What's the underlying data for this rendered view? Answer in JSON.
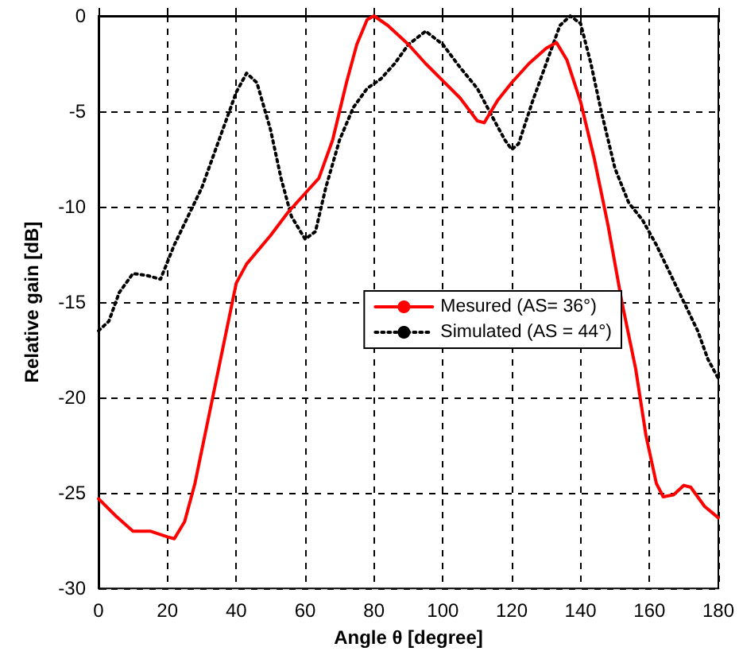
{
  "chart_data": {
    "type": "line",
    "xlabel": "Angle θ [degree]",
    "ylabel": "Relative gain [dB]",
    "xlim": [
      0,
      180
    ],
    "xticks": [
      0,
      20,
      40,
      60,
      80,
      100,
      120,
      140,
      160,
      180
    ],
    "ylim": [
      -30,
      0
    ],
    "yticks": [
      -30,
      -25,
      -20,
      -15,
      -10,
      -5,
      0
    ],
    "grid": true,
    "legend": "right",
    "marker": "none",
    "series": [
      {
        "name": "Mesured (AS= 36°)",
        "color": "#ff0000",
        "line_style": "solid",
        "x": [
          0,
          5,
          10,
          15,
          20,
          22,
          25,
          28,
          32,
          36,
          40,
          43,
          50,
          55,
          60,
          64,
          68,
          72,
          75,
          78,
          80,
          84,
          90,
          95,
          100,
          105,
          110,
          112,
          116,
          120,
          125,
          130,
          133,
          136,
          140,
          144,
          148,
          152,
          156,
          159,
          162,
          164,
          167,
          170,
          172,
          176,
          180
        ],
        "values": [
          -25.3,
          -26.2,
          -27,
          -27,
          -27.3,
          -27.4,
          -26.5,
          -24.5,
          -21,
          -17.5,
          -14,
          -13,
          -11.5,
          -10.3,
          -9.3,
          -8.5,
          -6.5,
          -3.5,
          -1.5,
          -0.2,
          0,
          -0.5,
          -1.5,
          -2.5,
          -3.4,
          -4.3,
          -5.5,
          -5.6,
          -4.4,
          -3.5,
          -2.5,
          -1.7,
          -1.4,
          -2.3,
          -4.5,
          -7.5,
          -11,
          -15,
          -18.5,
          -22,
          -24.5,
          -25.2,
          -25.1,
          -24.6,
          -24.7,
          -25.7,
          -26.3
        ]
      },
      {
        "name": "Simulated (AS = 44°)",
        "color": "#000000",
        "line_style": "dotted",
        "x": [
          0,
          3,
          6,
          10,
          14,
          18,
          22,
          26,
          30,
          34,
          38,
          40,
          43,
          46,
          50,
          53,
          56,
          60,
          63,
          66,
          70,
          74,
          78,
          82,
          86,
          90,
          95,
          100,
          105,
          110,
          115,
          118,
          120,
          122,
          126,
          130,
          134,
          137,
          140,
          143,
          146,
          150,
          154,
          158,
          162,
          166,
          170,
          174,
          177,
          180
        ],
        "values": [
          -16.5,
          -16,
          -14.5,
          -13.5,
          -13.6,
          -13.8,
          -12,
          -10.5,
          -9,
          -7,
          -5,
          -4,
          -3,
          -3.5,
          -6,
          -8.5,
          -10.5,
          -11.7,
          -11.3,
          -9,
          -6.5,
          -4.8,
          -3.8,
          -3.3,
          -2.5,
          -1.5,
          -0.8,
          -1.5,
          -2.7,
          -3.8,
          -5.5,
          -6.5,
          -7,
          -6.7,
          -4.5,
          -2.5,
          -0.5,
          0,
          -0.4,
          -2.5,
          -5,
          -8,
          -9.8,
          -10.7,
          -12,
          -13.5,
          -15,
          -16.5,
          -18,
          -19
        ]
      }
    ]
  }
}
